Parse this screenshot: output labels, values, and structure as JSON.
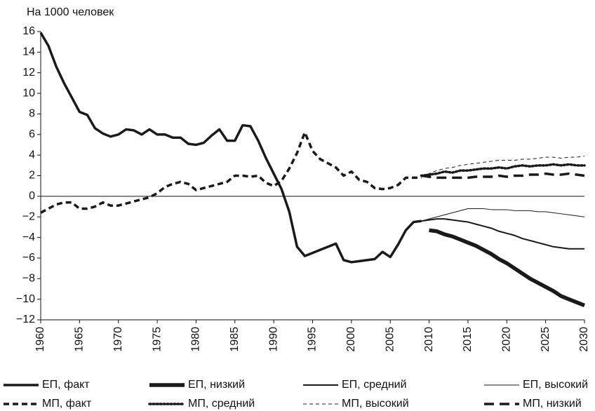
{
  "chart_data": {
    "type": "line",
    "title": "На 1000 человек",
    "xlim": [
      1960,
      2030
    ],
    "xticks": [
      1960,
      1965,
      1970,
      1975,
      1980,
      1985,
      1990,
      1995,
      2000,
      2005,
      2010,
      2015,
      2020,
      2025,
      2030
    ],
    "ylim": [
      -12,
      16
    ],
    "yticks": [
      {
        "value": -12,
        "label": "−12"
      },
      {
        "value": -10,
        "label": "−10"
      },
      {
        "value": -8,
        "label": "−8"
      },
      {
        "value": -6,
        "label": "−6"
      },
      {
        "value": -4,
        "label": "−4"
      },
      {
        "value": -2,
        "label": "−2"
      },
      0,
      2,
      4,
      6,
      8,
      10,
      12,
      14,
      16
    ],
    "legend": "bottom",
    "series": [
      {
        "name": "ЕП, факт",
        "color": "#1a1a1a",
        "style": "solid",
        "weight": "bold",
        "x": [
          1960,
          1961,
          1962,
          1963,
          1964,
          1965,
          1966,
          1967,
          1968,
          1969,
          1970,
          1971,
          1972,
          1973,
          1974,
          1975,
          1976,
          1977,
          1978,
          1979,
          1980,
          1981,
          1982,
          1983,
          1984,
          1985,
          1986,
          1987,
          1988,
          1989,
          1990,
          1991,
          1992,
          1993,
          1994,
          1995,
          1996,
          1997,
          1998,
          1999,
          2000,
          2001,
          2002,
          2003,
          2004,
          2005,
          2006,
          2007,
          2008,
          2009
        ],
        "values": [
          15.9,
          14.6,
          12.6,
          11.0,
          9.6,
          8.2,
          7.9,
          6.6,
          6.1,
          5.8,
          6.0,
          6.5,
          6.4,
          6.0,
          6.5,
          6.0,
          6.0,
          5.7,
          5.7,
          5.1,
          5.0,
          5.2,
          5.9,
          6.5,
          5.4,
          5.4,
          6.9,
          6.8,
          5.4,
          3.7,
          2.2,
          0.7,
          -1.5,
          -4.9,
          -5.8,
          -5.5,
          -5.2,
          -4.9,
          -4.6,
          -6.2,
          -6.4,
          -6.3,
          -6.2,
          -6.1,
          -5.4,
          -5.9,
          -4.7,
          -3.3,
          -2.5,
          -2.4
        ]
      },
      {
        "name": "ЕП, низкий",
        "color": "#1a1a1a",
        "style": "solid",
        "weight": "heavy",
        "x": [
          2010,
          2011,
          2012,
          2013,
          2014,
          2015,
          2016,
          2017,
          2018,
          2019,
          2020,
          2021,
          2022,
          2023,
          2024,
          2025,
          2026,
          2027,
          2028,
          2029,
          2030
        ],
        "values": [
          -3.3,
          -3.4,
          -3.7,
          -3.9,
          -4.2,
          -4.5,
          -4.8,
          -5.2,
          -5.6,
          -6.1,
          -6.5,
          -7.0,
          -7.5,
          -8.0,
          -8.4,
          -8.8,
          -9.2,
          -9.7,
          -10.0,
          -10.3,
          -10.6
        ]
      },
      {
        "name": "ЕП, средний",
        "color": "#1a1a1a",
        "style": "solid",
        "weight": "medium",
        "x": [
          2009,
          2010,
          2011,
          2012,
          2013,
          2014,
          2015,
          2016,
          2017,
          2018,
          2019,
          2020,
          2021,
          2022,
          2023,
          2024,
          2025,
          2026,
          2027,
          2028,
          2029,
          2030
        ],
        "values": [
          -2.4,
          -2.3,
          -2.2,
          -2.2,
          -2.3,
          -2.4,
          -2.5,
          -2.7,
          -2.9,
          -3.1,
          -3.4,
          -3.6,
          -3.8,
          -4.1,
          -4.3,
          -4.5,
          -4.7,
          -4.9,
          -5.0,
          -5.1,
          -5.1,
          -5.1
        ]
      },
      {
        "name": "ЕП, высокий",
        "color": "#1a1a1a",
        "style": "solid",
        "weight": "thin",
        "x": [
          2009,
          2010,
          2011,
          2012,
          2013,
          2014,
          2015,
          2016,
          2017,
          2018,
          2019,
          2020,
          2021,
          2022,
          2023,
          2024,
          2025,
          2026,
          2027,
          2028,
          2029,
          2030
        ],
        "values": [
          -2.4,
          -2.2,
          -2.0,
          -1.8,
          -1.6,
          -1.4,
          -1.2,
          -1.2,
          -1.2,
          -1.3,
          -1.3,
          -1.3,
          -1.4,
          -1.4,
          -1.4,
          -1.5,
          -1.5,
          -1.6,
          -1.7,
          -1.8,
          -1.9,
          -2.0
        ]
      },
      {
        "name": "МП, факт",
        "color": "#1a1a1a",
        "style": "dashed",
        "weight": "bold",
        "x": [
          1960,
          1961,
          1962,
          1963,
          1964,
          1965,
          1966,
          1967,
          1968,
          1969,
          1970,
          1971,
          1972,
          1973,
          1974,
          1975,
          1976,
          1977,
          1978,
          1979,
          1980,
          1981,
          1982,
          1983,
          1984,
          1985,
          1986,
          1987,
          1988,
          1989,
          1990,
          1991,
          1992,
          1993,
          1994,
          1995,
          1996,
          1997,
          1998,
          1999,
          2000,
          2001,
          2002,
          2003,
          2004,
          2005,
          2006,
          2007,
          2008,
          2009
        ],
        "values": [
          -1.6,
          -1.2,
          -0.8,
          -0.6,
          -0.6,
          -1.2,
          -1.2,
          -1.0,
          -0.6,
          -0.9,
          -0.9,
          -0.7,
          -0.5,
          -0.3,
          -0.1,
          0.3,
          0.9,
          1.2,
          1.4,
          1.2,
          0.6,
          0.8,
          1.0,
          1.2,
          1.4,
          2.0,
          2.0,
          1.9,
          2.0,
          1.3,
          1.0,
          1.5,
          2.7,
          4.2,
          6.2,
          4.4,
          3.6,
          3.2,
          2.8,
          2.0,
          2.4,
          1.6,
          1.4,
          0.8,
          0.7,
          0.8,
          1.1,
          1.8,
          1.8,
          1.8
        ]
      },
      {
        "name": "МП, средний",
        "color": "#1a1a1a",
        "style": "dotted",
        "weight": "bold",
        "x": [
          2009,
          2010,
          2011,
          2012,
          2013,
          2014,
          2015,
          2016,
          2017,
          2018,
          2019,
          2020,
          2021,
          2022,
          2023,
          2024,
          2025,
          2026,
          2027,
          2028,
          2029,
          2030
        ],
        "values": [
          2.0,
          2.1,
          2.2,
          2.4,
          2.3,
          2.5,
          2.5,
          2.6,
          2.7,
          2.7,
          2.8,
          2.7,
          2.9,
          3.0,
          2.9,
          3.0,
          3.0,
          3.1,
          3.0,
          3.1,
          3.0,
          3.0
        ]
      },
      {
        "name": "МП, высокий",
        "color": "#1a1a1a",
        "style": "dashed",
        "weight": "thin",
        "x": [
          2009,
          2010,
          2011,
          2012,
          2013,
          2014,
          2015,
          2016,
          2017,
          2018,
          2019,
          2020,
          2021,
          2022,
          2023,
          2024,
          2025,
          2026,
          2027,
          2028,
          2029,
          2030
        ],
        "values": [
          2.0,
          2.2,
          2.5,
          2.7,
          2.8,
          3.0,
          3.1,
          3.2,
          3.3,
          3.4,
          3.5,
          3.5,
          3.5,
          3.6,
          3.6,
          3.7,
          3.8,
          3.8,
          3.7,
          3.8,
          3.8,
          3.9
        ]
      },
      {
        "name": "МП, низкий",
        "color": "#1a1a1a",
        "style": "long-dashed",
        "weight": "bold",
        "x": [
          2009,
          2010,
          2011,
          2012,
          2013,
          2014,
          2015,
          2016,
          2017,
          2018,
          2019,
          2020,
          2021,
          2022,
          2023,
          2024,
          2025,
          2026,
          2027,
          2028,
          2029,
          2030
        ],
        "values": [
          2.0,
          1.9,
          1.8,
          1.8,
          1.8,
          1.8,
          1.8,
          1.9,
          1.9,
          1.9,
          2.0,
          1.9,
          2.0,
          2.0,
          2.1,
          2.1,
          2.2,
          2.1,
          2.1,
          2.2,
          2.1,
          2.0
        ]
      }
    ]
  }
}
